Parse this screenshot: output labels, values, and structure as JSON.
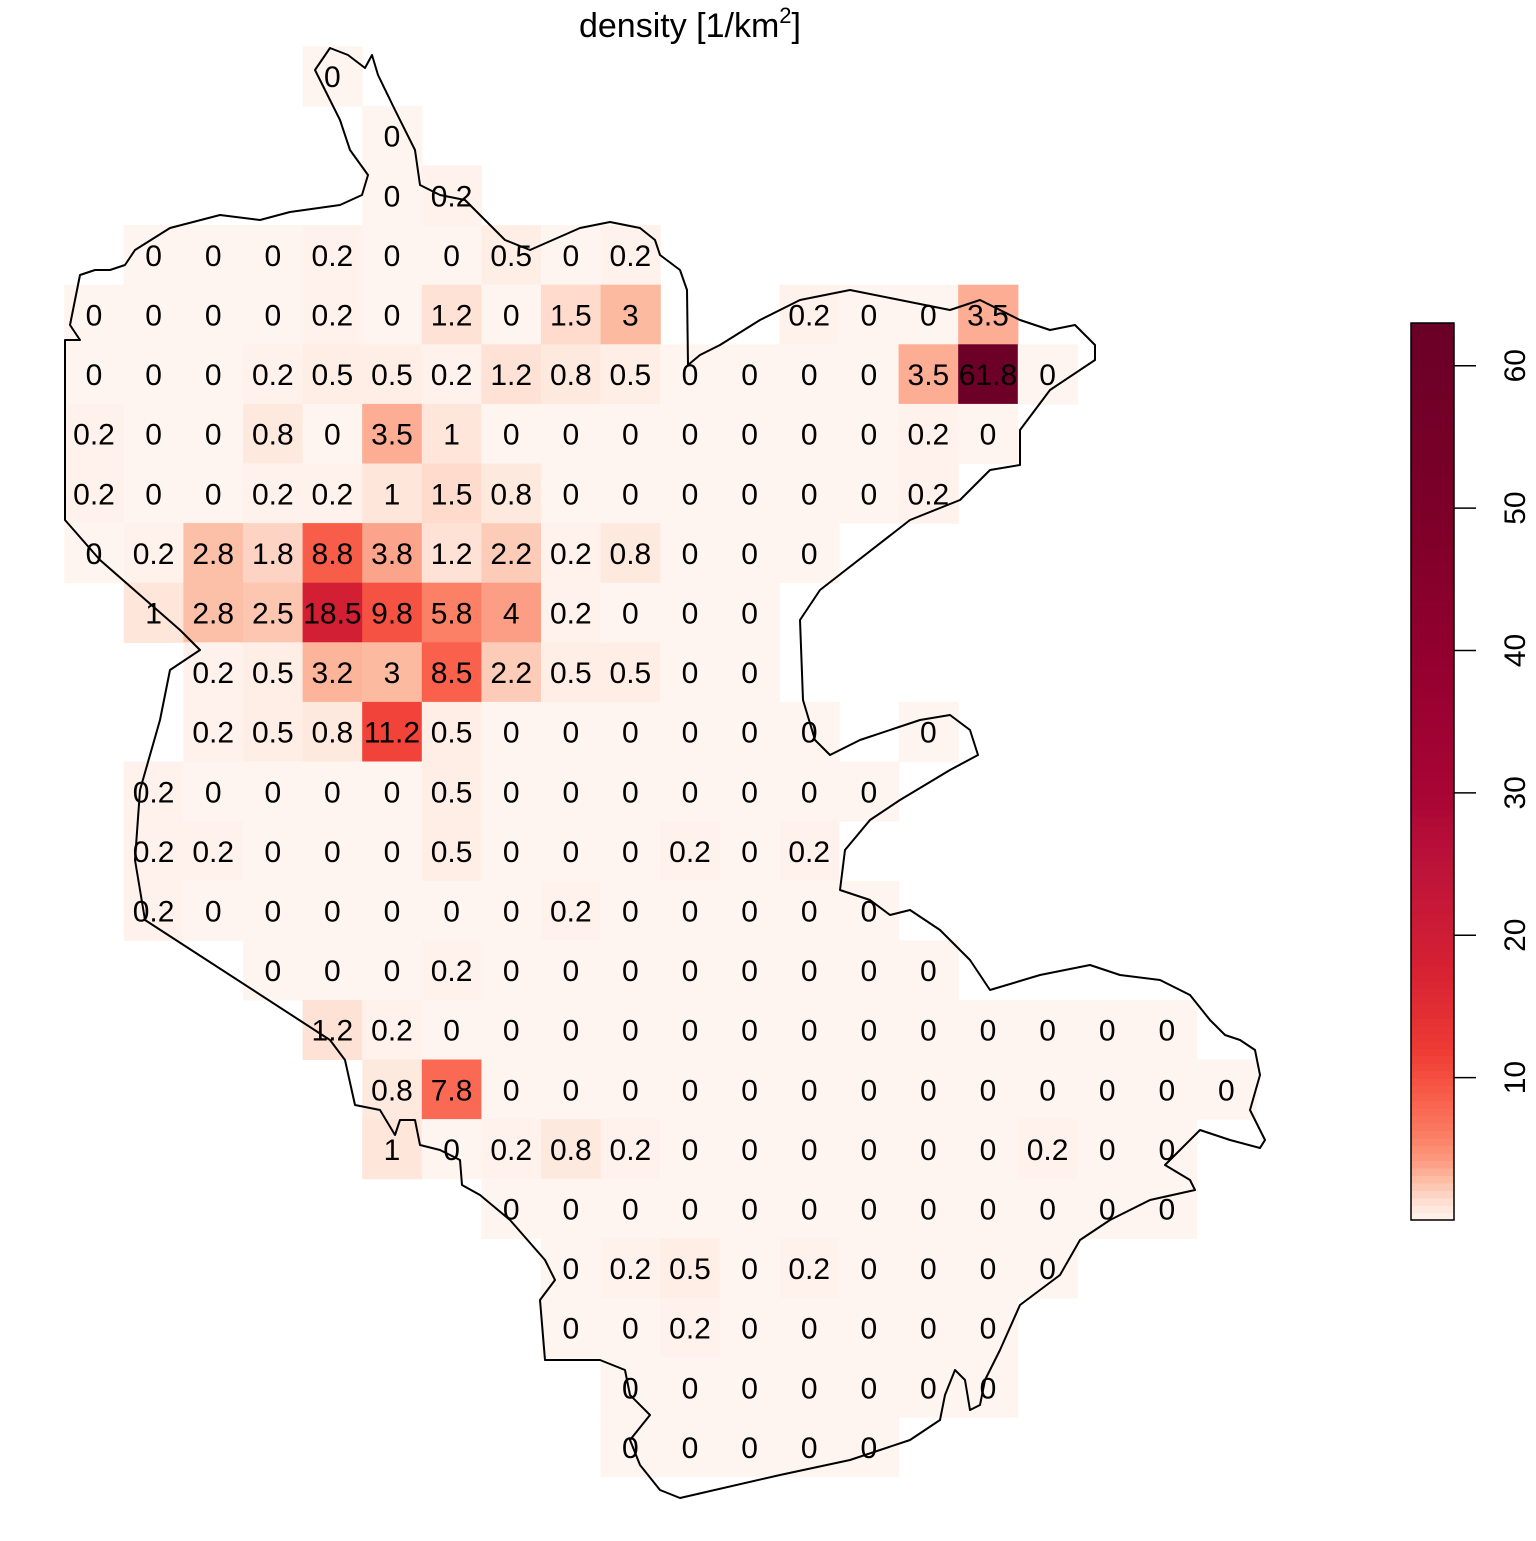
{
  "chart_data": {
    "type": "heatmap",
    "title": "density [1/km",
    "title_superscript": "2",
    "title_close": "]",
    "zlim": [
      0,
      63
    ],
    "colorbar": {
      "ticks": [
        10,
        20,
        30,
        40,
        50,
        60
      ],
      "tick_labels": [
        "10",
        "20",
        "30",
        "40",
        "50",
        "60"
      ],
      "placement": "right"
    },
    "color_scale": [
      [
        0,
        "#FFF5F0"
      ],
      [
        1,
        "#FEE6DB"
      ],
      [
        2,
        "#FDD0BE"
      ],
      [
        3,
        "#FCBBA1"
      ],
      [
        4,
        "#FC9E85"
      ],
      [
        6,
        "#FB7D63"
      ],
      [
        9,
        "#F85B48"
      ],
      [
        12,
        "#EE3A34"
      ],
      [
        18,
        "#D42032"
      ],
      [
        24,
        "#C0153A"
      ],
      [
        30,
        "#A80535"
      ],
      [
        40,
        "#92002F"
      ],
      [
        50,
        "#7C0029"
      ],
      [
        63,
        "#6A0026"
      ]
    ],
    "outline_color": "#000000",
    "rows": [
      {
        "start": 4,
        "values": [
          0
        ]
      },
      {
        "start": 5,
        "values": [
          0
        ]
      },
      {
        "start": 5,
        "values": [
          0,
          0.2
        ]
      },
      {
        "start": 1,
        "values": [
          0,
          0,
          0,
          0.2,
          0,
          0,
          0.5,
          0,
          0.2
        ]
      },
      {
        "start": 0,
        "values": [
          0,
          0,
          0,
          0,
          0.2,
          0,
          1.2,
          0,
          1.5,
          3,
          null,
          null,
          0.2,
          0,
          0,
          3.5
        ]
      },
      {
        "start": 0,
        "values": [
          0,
          0,
          0,
          0.2,
          0.5,
          0.5,
          0.2,
          1.2,
          0.8,
          0.5,
          0,
          0,
          0,
          0,
          3.5,
          61.8,
          0
        ]
      },
      {
        "start": 0,
        "values": [
          0.2,
          0,
          0,
          0.8,
          0,
          3.5,
          1,
          0,
          0,
          0,
          0,
          0,
          0,
          0,
          0.2,
          0
        ]
      },
      {
        "start": 0,
        "values": [
          0.2,
          0,
          0,
          0.2,
          0.2,
          1,
          1.5,
          0.8,
          0,
          0,
          0,
          0,
          0,
          0,
          0.2
        ]
      },
      {
        "start": 0,
        "values": [
          0,
          0.2,
          2.8,
          1.8,
          8.8,
          3.8,
          1.2,
          2.2,
          0.2,
          0.8,
          0,
          0,
          0
        ]
      },
      {
        "start": 1,
        "values": [
          1,
          2.8,
          2.5,
          18.5,
          9.8,
          5.8,
          4,
          0.2,
          0,
          0,
          0
        ]
      },
      {
        "start": 2,
        "values": [
          0.2,
          0.5,
          3.2,
          3,
          8.5,
          2.2,
          0.5,
          0.5,
          0,
          0
        ]
      },
      {
        "start": 2,
        "values": [
          0.2,
          0.5,
          0.8,
          11.2,
          0.5,
          0,
          0,
          0,
          0,
          0,
          0,
          null,
          0
        ]
      },
      {
        "start": 1,
        "values": [
          0.2,
          0,
          0,
          0,
          0,
          0.5,
          0,
          0,
          0,
          0,
          0,
          0,
          0
        ]
      },
      {
        "start": 1,
        "values": [
          0.2,
          0.2,
          0,
          0,
          0,
          0.5,
          0,
          0,
          0,
          0.2,
          0,
          0.2
        ]
      },
      {
        "start": 1,
        "values": [
          0.2,
          0,
          0,
          0,
          0,
          0,
          0,
          0.2,
          0,
          0,
          0,
          0,
          0
        ]
      },
      {
        "start": 3,
        "values": [
          0,
          0,
          0,
          0.2,
          0,
          0,
          0,
          0,
          0,
          0,
          0,
          0
        ]
      },
      {
        "start": 4,
        "values": [
          1.2,
          0.2,
          0,
          0,
          0,
          0,
          0,
          0,
          0,
          0,
          0,
          0,
          0,
          0,
          0
        ]
      },
      {
        "start": 5,
        "values": [
          0.8,
          7.8,
          0,
          0,
          0,
          0,
          0,
          0,
          0,
          0,
          0,
          0,
          0,
          0,
          0
        ]
      },
      {
        "start": 5,
        "values": [
          1,
          0,
          0.2,
          0.8,
          0.2,
          0,
          0,
          0,
          0,
          0,
          0,
          0.2,
          0,
          0
        ]
      },
      {
        "start": 7,
        "values": [
          0,
          0,
          0,
          0,
          0,
          0,
          0,
          0,
          0,
          0,
          0,
          0
        ]
      },
      {
        "start": 8,
        "values": [
          0,
          0.2,
          0.5,
          0,
          0.2,
          0,
          0,
          0,
          0
        ]
      },
      {
        "start": 8,
        "values": [
          0,
          0,
          0.2,
          0,
          0,
          0,
          0,
          0
        ]
      },
      {
        "start": 9,
        "values": [
          0,
          0,
          0,
          0,
          0,
          0,
          0
        ]
      },
      {
        "start": 9,
        "values": [
          0,
          0,
          0,
          0,
          0
        ]
      }
    ]
  }
}
